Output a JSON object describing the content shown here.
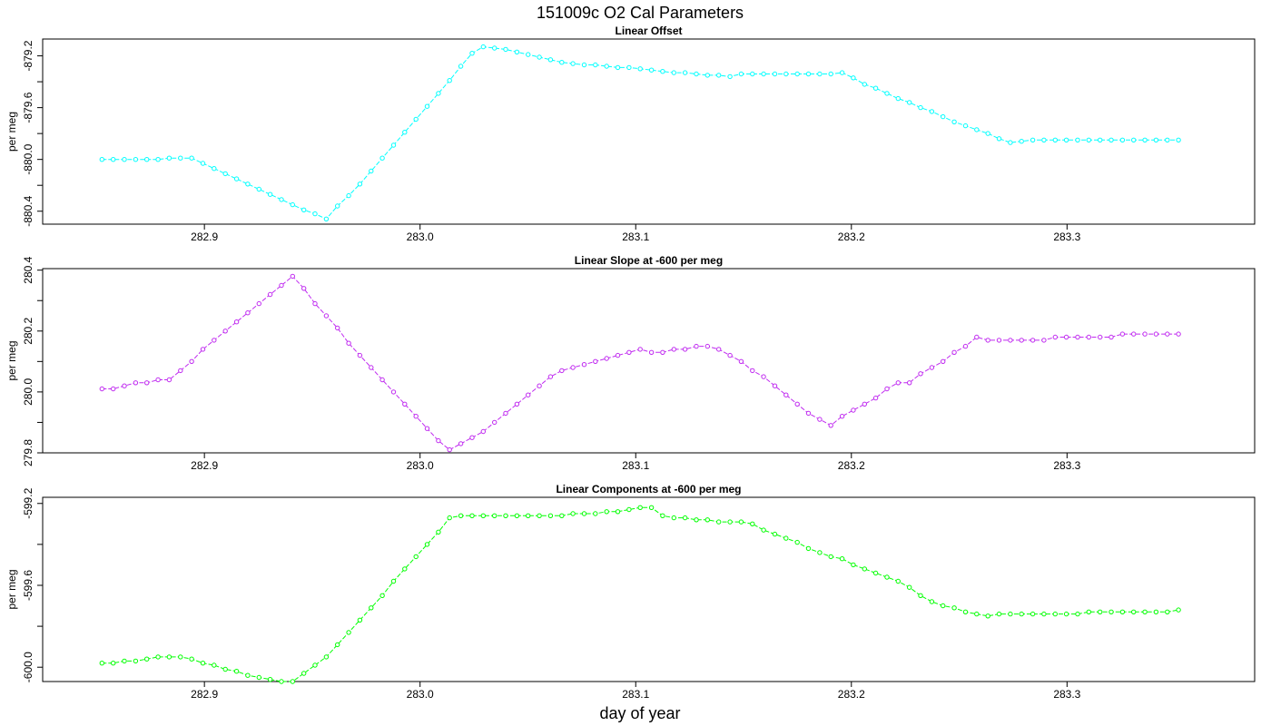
{
  "title": "151009c   O2 Cal Parameters",
  "xlabel": "day of year",
  "chart_data": [
    {
      "type": "line",
      "title": "Linear Offset",
      "ylabel": "per meg",
      "xlim": [
        282.825,
        283.387
      ],
      "ylim": [
        -880.5,
        -879.07
      ],
      "xticks": [
        282.9,
        283.0,
        283.1,
        283.2,
        283.3
      ],
      "xtick_labels": [
        "282.9",
        "283.0",
        "283.1",
        "283.2",
        "283.3"
      ],
      "yticks": [
        -880.4,
        -880.0,
        -879.6,
        -879.2
      ],
      "ytick_labels": [
        "-880.4",
        "-880.0",
        "-879.6",
        "-879.2"
      ],
      "color": "#00ffff",
      "series": [
        {
          "x": [
            282.8525,
            282.8577,
            282.8629,
            282.8681,
            282.8733,
            282.8785,
            282.8837,
            282.8889,
            282.8941,
            282.8993,
            282.9045,
            282.9097,
            282.9149,
            282.9201,
            282.9253,
            282.9305,
            282.9357,
            282.9409,
            282.9461,
            282.9513,
            282.9565,
            282.9617,
            282.9669,
            282.9721,
            282.9773,
            282.9825,
            282.9877,
            282.9929,
            282.9981,
            283.0033,
            283.0085,
            283.0137,
            283.0189,
            283.0241,
            283.0293,
            283.0345,
            283.0397,
            283.0449,
            283.0501,
            283.0553,
            283.0605,
            283.0657,
            283.0709,
            283.0761,
            283.0813,
            283.0865,
            283.0917,
            283.0969,
            283.1021,
            283.1073,
            283.1125,
            283.1177,
            283.1229,
            283.1281,
            283.1333,
            283.1385,
            283.1437,
            283.1489,
            283.1541,
            283.1593,
            283.1645,
            283.1697,
            283.1749,
            283.1801,
            283.1853,
            283.1905,
            283.1957,
            283.2009,
            283.2061,
            283.2113,
            283.2165,
            283.2217,
            283.2269,
            283.2321,
            283.2373,
            283.2425,
            283.2477,
            283.2529,
            283.2581,
            283.2633,
            283.2685,
            283.2737,
            283.2789,
            283.2841,
            283.2893,
            283.2945,
            283.2997,
            283.3049,
            283.3101,
            283.3153,
            283.3205,
            283.3257,
            283.3309,
            283.3361,
            283.3413,
            283.3465,
            283.3517
          ],
          "y": [
            -880.0,
            -880.0,
            -880.0,
            -880.0,
            -880.0,
            -880.0,
            -879.99,
            -879.99,
            -879.99,
            -880.03,
            -880.07,
            -880.11,
            -880.15,
            -880.19,
            -880.23,
            -880.27,
            -880.31,
            -880.35,
            -880.39,
            -880.42,
            -880.46,
            -880.36,
            -880.28,
            -880.19,
            -880.09,
            -879.99,
            -879.89,
            -879.79,
            -879.69,
            -879.59,
            -879.49,
            -879.39,
            -879.28,
            -879.18,
            -879.13,
            -879.14,
            -879.15,
            -879.17,
            -879.19,
            -879.21,
            -879.23,
            -879.25,
            -879.26,
            -879.27,
            -879.27,
            -879.28,
            -879.29,
            -879.29,
            -879.3,
            -879.31,
            -879.32,
            -879.33,
            -879.33,
            -879.34,
            -879.35,
            -879.35,
            -879.36,
            -879.34,
            -879.34,
            -879.34,
            -879.34,
            -879.34,
            -879.34,
            -879.34,
            -879.34,
            -879.34,
            -879.33,
            -879.37,
            -879.42,
            -879.45,
            -879.49,
            -879.53,
            -879.56,
            -879.6,
            -879.63,
            -879.67,
            -879.71,
            -879.74,
            -879.77,
            -879.8,
            -879.84,
            -879.87,
            -879.86,
            -879.85,
            -879.85,
            -879.85,
            -879.85,
            -879.85,
            -879.85,
            -879.85,
            -879.85,
            -879.85,
            -879.85,
            -879.85,
            -879.85,
            -879.85,
            -879.85
          ]
        }
      ]
    },
    {
      "type": "line",
      "title": "Linear Slope at -600 per meg",
      "ylabel": "per meg",
      "xlim": [
        282.825,
        283.387
      ],
      "ylim": [
        279.8,
        280.405
      ],
      "xticks": [
        282.9,
        283.0,
        283.1,
        283.2,
        283.3
      ],
      "xtick_labels": [
        "282.9",
        "283.0",
        "283.1",
        "283.2",
        "283.3"
      ],
      "yticks": [
        279.8,
        280.0,
        280.2,
        280.4
      ],
      "ytick_labels": [
        "279.8",
        "280.0",
        "280.2",
        "280.4"
      ],
      "color": "#c02bf0",
      "series": [
        {
          "x": [
            282.8525,
            282.8577,
            282.8629,
            282.8681,
            282.8733,
            282.8785,
            282.8837,
            282.8889,
            282.8941,
            282.8993,
            282.9045,
            282.9097,
            282.9149,
            282.9201,
            282.9253,
            282.9305,
            282.9357,
            282.9409,
            282.9461,
            282.9513,
            282.9565,
            282.9617,
            282.9669,
            282.9721,
            282.9773,
            282.9825,
            282.9877,
            282.9929,
            282.9981,
            283.0033,
            283.0085,
            283.0137,
            283.0189,
            283.0241,
            283.0293,
            283.0345,
            283.0397,
            283.0449,
            283.0501,
            283.0553,
            283.0605,
            283.0657,
            283.0709,
            283.0761,
            283.0813,
            283.0865,
            283.0917,
            283.0969,
            283.1021,
            283.1073,
            283.1125,
            283.1177,
            283.1229,
            283.1281,
            283.1333,
            283.1385,
            283.1437,
            283.1489,
            283.1541,
            283.1593,
            283.1645,
            283.1697,
            283.1749,
            283.1801,
            283.1853,
            283.1905,
            283.1957,
            283.2009,
            283.2061,
            283.2113,
            283.2165,
            283.2217,
            283.2269,
            283.2321,
            283.2373,
            283.2425,
            283.2477,
            283.2529,
            283.2581,
            283.2633,
            283.2685,
            283.2737,
            283.2789,
            283.2841,
            283.2893,
            283.2945,
            283.2997,
            283.3049,
            283.3101,
            283.3153,
            283.3205,
            283.3257,
            283.3309,
            283.3361,
            283.3413,
            283.3465,
            283.3517
          ],
          "y": [
            280.01,
            280.01,
            280.02,
            280.03,
            280.03,
            280.04,
            280.04,
            280.07,
            280.1,
            280.14,
            280.17,
            280.2,
            280.23,
            280.26,
            280.29,
            280.32,
            280.35,
            280.38,
            280.34,
            280.29,
            280.25,
            280.21,
            280.16,
            280.12,
            280.08,
            280.04,
            280.0,
            279.96,
            279.92,
            279.88,
            279.84,
            279.81,
            279.83,
            279.85,
            279.87,
            279.9,
            279.93,
            279.96,
            279.99,
            280.02,
            280.05,
            280.07,
            280.08,
            280.09,
            280.1,
            280.11,
            280.12,
            280.13,
            280.14,
            280.13,
            280.13,
            280.14,
            280.14,
            280.15,
            280.15,
            280.14,
            280.12,
            280.1,
            280.07,
            280.05,
            280.02,
            279.99,
            279.96,
            279.93,
            279.91,
            279.89,
            279.92,
            279.94,
            279.96,
            279.98,
            280.01,
            280.03,
            280.03,
            280.06,
            280.08,
            280.1,
            280.13,
            280.15,
            280.18,
            280.17,
            280.17,
            280.17,
            280.17,
            280.17,
            280.17,
            280.18,
            280.18,
            280.18,
            280.18,
            280.18,
            280.18,
            280.19,
            280.19,
            280.19,
            280.19,
            280.19,
            280.19
          ]
        }
      ]
    },
    {
      "type": "line",
      "title": "Linear Components at -600 per meg",
      "ylabel": "per meg",
      "xlim": [
        282.825,
        283.387
      ],
      "ylim": [
        -600.07,
        -599.17
      ],
      "xticks": [
        282.9,
        283.0,
        283.1,
        283.2,
        283.3
      ],
      "xtick_labels": [
        "282.9",
        "283.0",
        "283.1",
        "283.2",
        "283.3"
      ],
      "yticks": [
        -600.0,
        -599.6,
        -599.2
      ],
      "ytick_labels": [
        "-600.0",
        "-599.6",
        "-599.2"
      ],
      "color": "#00ff00",
      "series": [
        {
          "x": [
            282.8525,
            282.8577,
            282.8629,
            282.8681,
            282.8733,
            282.8785,
            282.8837,
            282.8889,
            282.8941,
            282.8993,
            282.9045,
            282.9097,
            282.9149,
            282.9201,
            282.9253,
            282.9305,
            282.9357,
            282.9409,
            282.9461,
            282.9513,
            282.9565,
            282.9617,
            282.9669,
            282.9721,
            282.9773,
            282.9825,
            282.9877,
            282.9929,
            282.9981,
            283.0033,
            283.0085,
            283.0137,
            283.0189,
            283.0241,
            283.0293,
            283.0345,
            283.0397,
            283.0449,
            283.0501,
            283.0553,
            283.0605,
            283.0657,
            283.0709,
            283.0761,
            283.0813,
            283.0865,
            283.0917,
            283.0969,
            283.1021,
            283.1073,
            283.1125,
            283.1177,
            283.1229,
            283.1281,
            283.1333,
            283.1385,
            283.1437,
            283.1489,
            283.1541,
            283.1593,
            283.1645,
            283.1697,
            283.1749,
            283.1801,
            283.1853,
            283.1905,
            283.1957,
            283.2009,
            283.2061,
            283.2113,
            283.2165,
            283.2217,
            283.2269,
            283.2321,
            283.2373,
            283.2425,
            283.2477,
            283.2529,
            283.2581,
            283.2633,
            283.2685,
            283.2737,
            283.2789,
            283.2841,
            283.2893,
            283.2945,
            283.2997,
            283.3049,
            283.3101,
            283.3153,
            283.3205,
            283.3257,
            283.3309,
            283.3361,
            283.3413,
            283.3465,
            283.3517
          ],
          "y": [
            -599.98,
            -599.98,
            -599.97,
            -599.97,
            -599.96,
            -599.95,
            -599.95,
            -599.95,
            -599.96,
            -599.98,
            -599.99,
            -600.01,
            -600.02,
            -600.04,
            -600.05,
            -600.06,
            -600.07,
            -600.07,
            -600.03,
            -599.99,
            -599.95,
            -599.89,
            -599.83,
            -599.77,
            -599.71,
            -599.65,
            -599.58,
            -599.52,
            -599.46,
            -599.4,
            -599.34,
            -599.27,
            -599.26,
            -599.26,
            -599.26,
            -599.26,
            -599.26,
            -599.26,
            -599.26,
            -599.26,
            -599.26,
            -599.26,
            -599.25,
            -599.25,
            -599.25,
            -599.24,
            -599.24,
            -599.23,
            -599.22,
            -599.22,
            -599.26,
            -599.27,
            -599.27,
            -599.28,
            -599.28,
            -599.29,
            -599.29,
            -599.29,
            -599.3,
            -599.33,
            -599.35,
            -599.37,
            -599.39,
            -599.42,
            -599.44,
            -599.46,
            -599.47,
            -599.5,
            -599.52,
            -599.54,
            -599.56,
            -599.58,
            -599.61,
            -599.65,
            -599.68,
            -599.7,
            -599.71,
            -599.73,
            -599.74,
            -599.75,
            -599.74,
            -599.74,
            -599.74,
            -599.74,
            -599.74,
            -599.74,
            -599.74,
            -599.74,
            -599.73,
            -599.73,
            -599.73,
            -599.73,
            -599.73,
            -599.73,
            -599.73,
            -599.73,
            -599.72
          ]
        }
      ]
    }
  ]
}
